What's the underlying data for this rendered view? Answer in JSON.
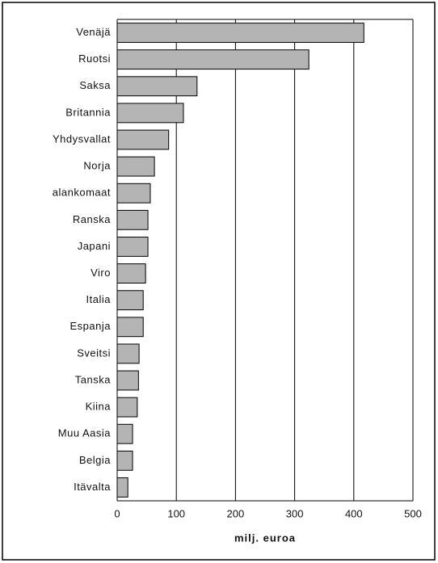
{
  "chart_data": {
    "type": "bar",
    "orientation": "horizontal",
    "categories": [
      "Venäjä",
      "Ruotsi",
      "Saksa",
      "Britannia",
      "Yhdysvallat",
      "Norja",
      "alankomaat",
      "Ranska",
      "Japani",
      "Viro",
      "Italia",
      "Espanja",
      "Sveitsi",
      "Tanska",
      "Kiina",
      "Muu Aasia",
      "Belgia",
      "Itävalta"
    ],
    "values": [
      417,
      324,
      135,
      112,
      87,
      63,
      56,
      52,
      52,
      48,
      44,
      44,
      37,
      36,
      34,
      26,
      26,
      18
    ],
    "color": "#b4b4b4",
    "xlabel": "milj. euroa",
    "xlim": [
      0,
      500
    ],
    "xticks": [
      0,
      100,
      200,
      300,
      400,
      500
    ],
    "grid": true
  }
}
